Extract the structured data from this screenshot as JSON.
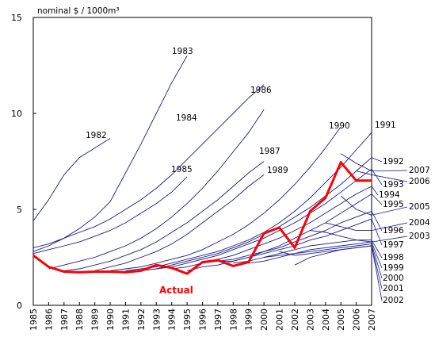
{
  "chart_data": {
    "type": "line",
    "ylabel": "nominal $ / 1000m³",
    "ylim": [
      0,
      15
    ],
    "y_ticks": [
      0,
      5,
      10,
      15
    ],
    "grid": false,
    "x": [
      1985,
      1986,
      1987,
      1988,
      1989,
      1990,
      1991,
      1992,
      1993,
      1994,
      1995,
      1996,
      1997,
      1998,
      1999,
      2000,
      2001,
      2002,
      2003,
      2004,
      2005,
      2006,
      2007
    ],
    "actual": {
      "name": "Actual",
      "color": "#ff0000",
      "values": [
        2.6,
        2.0,
        1.75,
        1.72,
        1.75,
        1.75,
        1.72,
        1.8,
        2.1,
        1.95,
        1.65,
        2.25,
        2.35,
        2.05,
        2.25,
        3.75,
        4.05,
        3.0,
        4.9,
        5.6,
        7.45,
        6.5,
        6.5
      ]
    },
    "forecasts": [
      {
        "name": "1982",
        "x": [
          1985,
          1986,
          1987,
          1988,
          1989,
          1990
        ],
        "values": [
          4.4,
          5.5,
          6.8,
          7.7,
          8.2,
          8.7
        ]
      },
      {
        "name": "1983",
        "x": [
          1985,
          1986,
          1987,
          1988,
          1989,
          1990,
          1991,
          1992,
          1993,
          1994,
          1995
        ],
        "values": [
          2.8,
          3.1,
          3.5,
          4.0,
          4.6,
          5.4,
          6.9,
          8.4,
          10.0,
          11.6,
          13.0
        ]
      },
      {
        "name": "1984",
        "x": [
          1985,
          1986,
          1987,
          1988,
          1989,
          1990,
          1991,
          1992,
          1993,
          1994,
          1995,
          1996,
          1997,
          1998,
          1999,
          2000
        ],
        "values": [
          3.0,
          3.2,
          3.5,
          3.8,
          4.1,
          4.5,
          5.0,
          5.5,
          6.1,
          6.8,
          7.6,
          8.4,
          9.2,
          10.0,
          10.8,
          11.5
        ]
      },
      {
        "name": "1985",
        "x": [
          1985,
          1986,
          1987,
          1988,
          1989,
          1990,
          1991,
          1992,
          1993,
          1994,
          1995
        ],
        "values": [
          2.7,
          2.9,
          3.1,
          3.3,
          3.6,
          3.9,
          4.3,
          4.8,
          5.3,
          5.9,
          6.7
        ]
      },
      {
        "name": "1986",
        "x": [
          1986,
          1987,
          1988,
          1989,
          1990,
          1991,
          1992,
          1993,
          1994,
          1995,
          1996,
          1997,
          1998,
          1999,
          2000
        ],
        "values": [
          1.9,
          2.1,
          2.3,
          2.5,
          2.8,
          3.1,
          3.5,
          4.0,
          4.6,
          5.3,
          6.1,
          7.0,
          8.0,
          9.0,
          10.2
        ]
      },
      {
        "name": "1987",
        "x": [
          1987,
          1988,
          1989,
          1990,
          1991,
          1992,
          1993,
          1994,
          1995,
          1996,
          1997,
          1998,
          1999,
          2000
        ],
        "values": [
          1.8,
          1.9,
          2.1,
          2.3,
          2.6,
          2.9,
          3.3,
          3.8,
          4.3,
          4.9,
          5.5,
          6.2,
          6.9,
          7.5
        ]
      },
      {
        "name": "1989",
        "x": [
          1989,
          1990,
          1991,
          1992,
          1993,
          1994,
          1995,
          1996,
          1997,
          1998,
          1999,
          2000
        ],
        "values": [
          1.8,
          2.0,
          2.2,
          2.5,
          2.8,
          3.2,
          3.7,
          4.3,
          4.9,
          5.5,
          6.2,
          6.8
        ]
      },
      {
        "name": "1990",
        "x": [
          1990,
          1991,
          1992,
          1993,
          1994,
          1995,
          1996,
          1997,
          1998,
          1999,
          2000,
          2001,
          2002,
          2003,
          2004,
          2005
        ],
        "values": [
          1.8,
          1.9,
          2.0,
          2.2,
          2.4,
          2.6,
          2.9,
          3.3,
          3.7,
          4.2,
          4.8,
          5.5,
          6.3,
          7.2,
          8.2,
          9.3
        ]
      },
      {
        "name": "1991",
        "x": [
          1991,
          1992,
          1993,
          1994,
          1995,
          1996,
          1997,
          1998,
          1999,
          2000,
          2001,
          2002,
          2003,
          2004,
          2005,
          2006,
          2007
        ],
        "values": [
          1.8,
          1.9,
          2.0,
          2.2,
          2.4,
          2.6,
          2.8,
          3.1,
          3.4,
          3.8,
          4.3,
          4.9,
          5.6,
          6.4,
          7.2,
          8.1,
          9.0
        ]
      },
      {
        "name": "1992",
        "x": [
          1992,
          1993,
          1994,
          1995,
          1996,
          1997,
          1998,
          1999,
          2000,
          2001,
          2002,
          2003,
          2004,
          2005,
          2006,
          2007
        ],
        "values": [
          1.8,
          1.9,
          2.1,
          2.3,
          2.5,
          2.7,
          3.0,
          3.3,
          3.7,
          4.1,
          4.6,
          5.1,
          5.7,
          6.3,
          7.0,
          7.7
        ]
      },
      {
        "name": "1993",
        "x": [
          1993,
          1994,
          1995,
          1996,
          1997,
          1998,
          1999,
          2000,
          2001,
          2002,
          2003,
          2004,
          2005,
          2006,
          2007
        ],
        "values": [
          1.9,
          2.0,
          2.2,
          2.4,
          2.6,
          2.9,
          3.2,
          3.5,
          3.9,
          4.3,
          4.8,
          5.3,
          5.9,
          6.5,
          7.1
        ]
      },
      {
        "name": "1994",
        "x": [
          1994,
          1995,
          1996,
          1997,
          1998,
          1999,
          2000,
          2001,
          2002,
          2003,
          2004,
          2005,
          2006,
          2007
        ],
        "values": [
          1.9,
          2.0,
          2.2,
          2.4,
          2.6,
          2.9,
          3.2,
          3.5,
          3.9,
          4.3,
          4.8,
          5.3,
          5.8,
          6.2
        ]
      },
      {
        "name": "1995",
        "x": [
          1995,
          1996,
          1997,
          1998,
          1999,
          2000,
          2001,
          2002,
          2003,
          2004,
          2005,
          2006,
          2007
        ],
        "values": [
          1.8,
          2.0,
          2.1,
          2.3,
          2.5,
          2.8,
          3.1,
          3.5,
          3.9,
          4.3,
          4.8,
          5.3,
          5.8
        ]
      },
      {
        "name": "1996",
        "x": [
          1996,
          1997,
          1998,
          1999,
          2000,
          2001,
          2002,
          2003,
          2004,
          2005,
          2006,
          2007
        ],
        "values": [
          2.2,
          2.3,
          2.4,
          2.6,
          2.8,
          3.0,
          3.3,
          3.6,
          3.9,
          4.3,
          4.6,
          4.9
        ]
      },
      {
        "name": "1997",
        "x": [
          1997,
          1998,
          1999,
          2000,
          2001,
          2002,
          2003,
          2004,
          2005,
          2006,
          2007
        ],
        "values": [
          2.3,
          2.3,
          2.5,
          2.7,
          2.9,
          3.1,
          3.4,
          3.6,
          3.9,
          4.2,
          4.5
        ]
      },
      {
        "name": "1998",
        "x": [
          1998,
          1999,
          2000,
          2001,
          2002,
          2003,
          2004,
          2005,
          2006,
          2007
        ],
        "values": [
          2.2,
          2.3,
          2.5,
          2.7,
          2.9,
          3.1,
          3.2,
          3.3,
          3.4,
          3.4
        ]
      },
      {
        "name": "1999",
        "x": [
          1999,
          2000,
          2001,
          2002,
          2003,
          2004,
          2005,
          2006,
          2007
        ],
        "values": [
          2.2,
          2.3,
          2.5,
          2.7,
          2.9,
          3.0,
          3.1,
          3.2,
          3.3
        ]
      },
      {
        "name": "2000",
        "x": [
          2000,
          2001,
          2002,
          2003,
          2004,
          2005,
          2006,
          2007
        ],
        "values": [
          2.5,
          2.6,
          2.7,
          2.8,
          2.9,
          3.0,
          3.1,
          3.2
        ]
      },
      {
        "name": "2001",
        "x": [
          2001,
          2002,
          2003,
          2004,
          2005,
          2006,
          2007
        ],
        "values": [
          2.8,
          2.6,
          2.7,
          2.8,
          2.9,
          3.0,
          3.1
        ]
      },
      {
        "name": "2002",
        "x": [
          2002,
          2003,
          2004,
          2005,
          2006,
          2007
        ],
        "values": [
          2.1,
          2.5,
          2.7,
          2.9,
          3.0,
          3.1
        ]
      },
      {
        "name": "2003",
        "x": [
          2003,
          2004,
          2005,
          2006,
          2007
        ],
        "values": [
          3.9,
          3.8,
          3.6,
          3.4,
          3.3
        ]
      },
      {
        "name": "2004",
        "x": [
          2004,
          2005,
          2006,
          2007
        ],
        "values": [
          4.3,
          4.1,
          3.9,
          3.9
        ]
      },
      {
        "name": "2005",
        "x": [
          2005,
          2006,
          2007
        ],
        "values": [
          5.7,
          5.0,
          4.7
        ]
      },
      {
        "name": "2006",
        "x": [
          2006,
          2007
        ],
        "values": [
          7.0,
          6.8
        ]
      },
      {
        "name": "2007",
        "x": [
          2005,
          2006,
          2007
        ],
        "values": [
          7.9,
          7.4,
          7.0
        ]
      }
    ]
  }
}
